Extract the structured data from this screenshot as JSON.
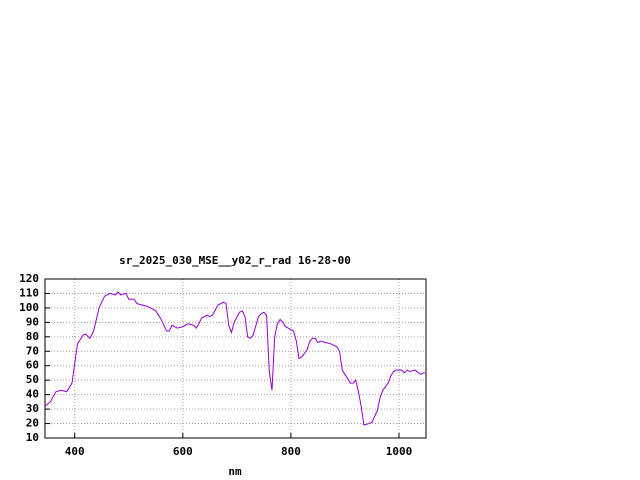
{
  "chart_data": {
    "type": "line",
    "title": "sr_2025_030_MSE__y02_r_rad 16-28-00",
    "x_label": "nm",
    "x": [
      345,
      355,
      365,
      375,
      385,
      395,
      405,
      415,
      420,
      428,
      435,
      445,
      455,
      465,
      475,
      480,
      485,
      495,
      500,
      510,
      515,
      525,
      535,
      545,
      550,
      560,
      570,
      575,
      580,
      590,
      600,
      610,
      620,
      625,
      635,
      645,
      650,
      655,
      665,
      675,
      680,
      685,
      690,
      695,
      705,
      710,
      715,
      720,
      725,
      730,
      740,
      745,
      750,
      755,
      760,
      765,
      770,
      775,
      780,
      785,
      790,
      800,
      805,
      810,
      815,
      820,
      830,
      835,
      840,
      845,
      850,
      855,
      865,
      875,
      885,
      890,
      895,
      905,
      910,
      915,
      920,
      925,
      930,
      935,
      945,
      950,
      960,
      965,
      970,
      980,
      985,
      990,
      995,
      1005,
      1010,
      1015,
      1020,
      1030,
      1040,
      1045,
      1048
    ],
    "series": [
      {
        "name": "sr_2025_030_MSE__y02_r_rad",
        "color": "#9400d3",
        "values": [
          32,
          35,
          42,
          43,
          42,
          48,
          75,
          81,
          82,
          79,
          84,
          100,
          108,
          110,
          109,
          111,
          109,
          110,
          106,
          106,
          103,
          102,
          101,
          99,
          98,
          92,
          84,
          84,
          88,
          86,
          87,
          89,
          88,
          86,
          93,
          95,
          94,
          95,
          102,
          104,
          103,
          88,
          83,
          90,
          97,
          98,
          94,
          80,
          79,
          81,
          94,
          96,
          97,
          95,
          56,
          43,
          80,
          89,
          92,
          90,
          87,
          85,
          84,
          77,
          65,
          66,
          71,
          77,
          79,
          79,
          76,
          77,
          76,
          75,
          73,
          70,
          57,
          51,
          48,
          48,
          50,
          42,
          32,
          19,
          20,
          21,
          29,
          38,
          43,
          48,
          53,
          56,
          57,
          57,
          55,
          57,
          56,
          57,
          54,
          55,
          55
        ]
      }
    ],
    "xlim": [
      345,
      1050
    ],
    "xticks": [
      400,
      600,
      800,
      1000
    ],
    "ylim": [
      10,
      120
    ],
    "yticks": [
      10,
      20,
      30,
      40,
      50,
      60,
      70,
      80,
      90,
      100,
      110,
      120
    ],
    "grid": true
  }
}
